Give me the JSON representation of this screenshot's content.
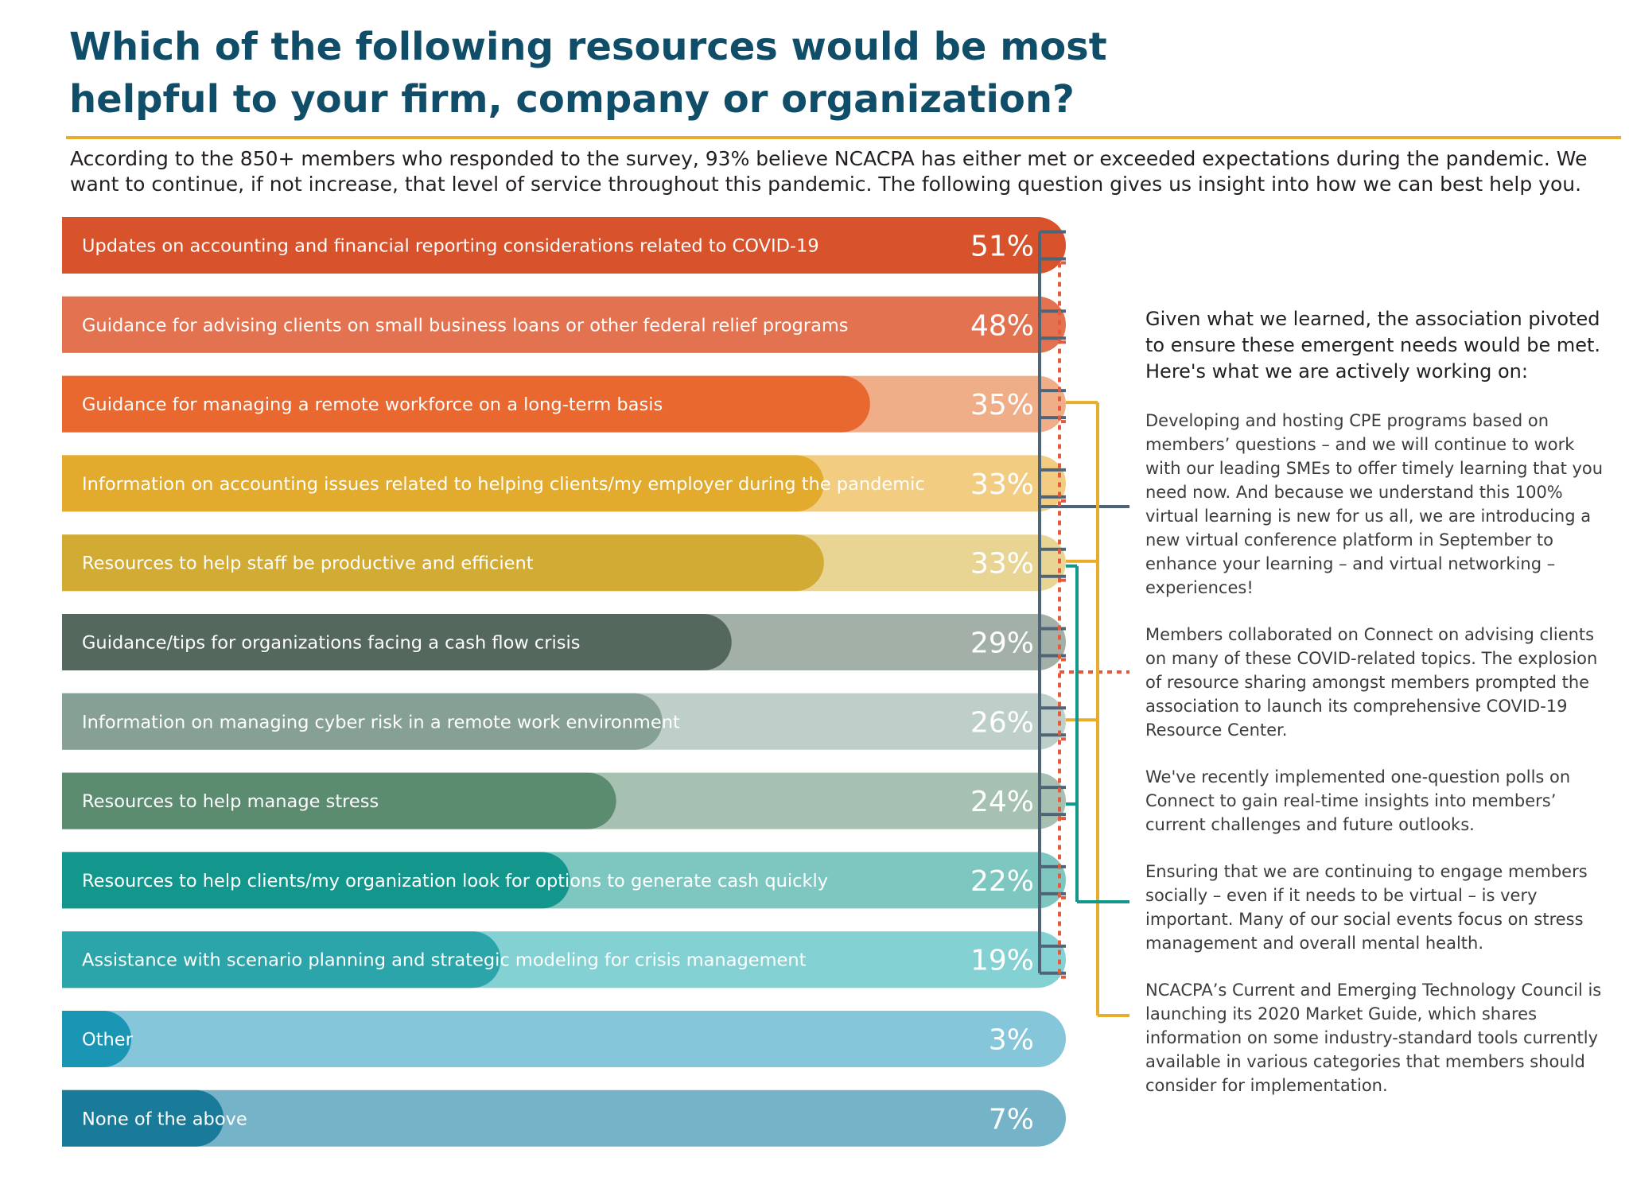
{
  "header": {
    "title": "Which of the following resources would be most helpful to your firm, company or organization?",
    "intro": "According to the 850+ members who responded to the survey, 93% believe NCACPA has either met or exceeded expectations during the pandemic. We want to continue, if not increase, that level of service throughout this pandemic. The following question gives us insight into how we can best help you."
  },
  "chart_data": {
    "type": "bar",
    "orientation": "horizontal",
    "categories": [
      "Updates on accounting and financial reporting considerations related to COVID-19",
      "Guidance for advising clients on small business loans or other federal relief programs",
      "Guidance for managing a remote workforce on a long-term basis",
      "Information on accounting issues related to helping clients/my employer during the pandemic",
      "Resources to help staff be productive and efficient",
      "Guidance/tips for organizations facing a cash flow crisis",
      "Information on managing cyber risk in a remote work environment",
      "Resources to help manage stress",
      "Resources to help clients/my organization look for options to generate cash quickly",
      "Assistance with scenario planning and strategic modeling for crisis management",
      "Other",
      "None of the above"
    ],
    "values": [
      51,
      48,
      35,
      33,
      33,
      29,
      26,
      24,
      22,
      19,
      3,
      7
    ],
    "value_labels": [
      "51%",
      "48%",
      "35%",
      "33%",
      "33%",
      "29%",
      "26%",
      "24%",
      "22%",
      "19%",
      "3%",
      "7%"
    ],
    "xlim": [
      0,
      100
    ],
    "colors_dark": [
      "#d8532c",
      "#e27250",
      "#e8682f",
      "#e3ab2d",
      "#d2ab35",
      "#55685e",
      "#86a096",
      "#5b8c70",
      "#13978c",
      "#2ba5aa",
      "#1a95b4",
      "#1a7a9a"
    ],
    "colors_light": [
      "#e9a18a",
      "#eeae98",
      "#efae88",
      "#f1cc81",
      "#e8d594",
      "#a2b0a8",
      "#becec8",
      "#a6c0b1",
      "#7dc7c0",
      "#84d1d4",
      "#85c6da",
      "#74b3c8"
    ],
    "connectors": {
      "slate_group": [
        0,
        1,
        2,
        3,
        4,
        5,
        6,
        7,
        8,
        9
      ],
      "red_dotted_group": [
        0,
        1,
        2,
        3,
        4,
        5,
        6,
        7,
        8,
        9
      ],
      "gold_group": [
        2,
        4,
        6
      ],
      "teal_group": [
        4,
        7
      ],
      "colors": {
        "slate": "#4e6577",
        "red": "#e8583a",
        "gold": "#e8ac2a",
        "teal": "#13978c"
      }
    }
  },
  "sidebar": {
    "heading": "Given what we learned, the association pivoted to ensure these emergent needs would be met. Here's what we are actively working on:",
    "items": [
      "Developing and hosting CPE programs based on members’ questions – and we will continue to work with our leading SMEs to offer timely learning that you need now. And because we understand this 100% virtual learning is new for us all, we are introducing a new virtual conference platform in September to enhance your learning – and virtual networking – experiences!",
      "Members collaborated on Connect on advising clients on many of these COVID-related topics.  The explosion of resource sharing amongst members prompted the association to launch its comprehensive COVID-19 Resource Center.",
      "We've recently implemented one-question polls on Connect to gain real-time insights into members’ current challenges and future outlooks.",
      "Ensuring that we are continuing to engage members socially – even if it needs to be virtual – is very important. Many of our social events focus on stress management and overall mental health.",
      "NCACPA’s Current and Emerging Technology Council is launching its 2020 Market Guide, which shares information on some industry-standard tools currently available in various categories that members should consider for implementation."
    ]
  }
}
